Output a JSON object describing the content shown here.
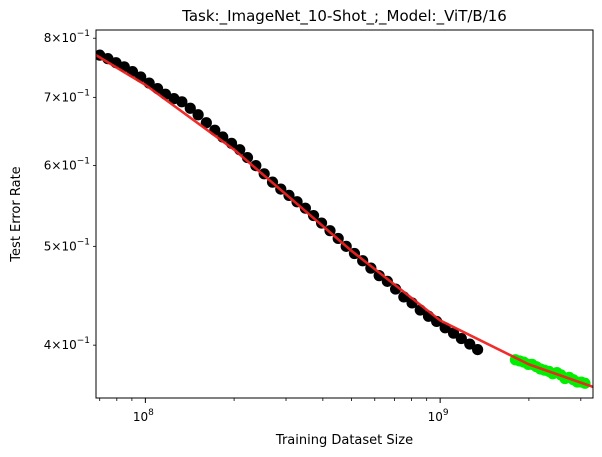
{
  "chart_data": {
    "type": "scatter",
    "title": "Task:_ImageNet_10-Shot_;_Model:_ViT/B/16",
    "xlabel": "Training Dataset Size",
    "ylabel": "Test Error Rate",
    "xscale": "log",
    "yscale": "log",
    "xlim": [
      68000000,
      3300000000
    ],
    "ylim": [
      0.355,
      0.815
    ],
    "grid": false,
    "x_ticks": [
      {
        "value": 100000000,
        "base": "10",
        "exp": "8"
      },
      {
        "value": 1000000000,
        "base": "10",
        "exp": "9"
      }
    ],
    "y_ticks": [
      {
        "value": 0.4,
        "mant": "4",
        "base": "10",
        "exp": "−1"
      },
      {
        "value": 0.5,
        "mant": "5",
        "base": "10",
        "exp": "−1"
      },
      {
        "value": 0.6,
        "mant": "6",
        "base": "10",
        "exp": "−1"
      },
      {
        "value": 0.7,
        "mant": "7",
        "base": "10",
        "exp": "−1"
      },
      {
        "value": 0.8,
        "mant": "8",
        "base": "10",
        "exp": "−1"
      }
    ],
    "x_minor_ticks": [
      70000000,
      80000000,
      90000000,
      200000000,
      300000000,
      400000000,
      500000000,
      600000000,
      700000000,
      800000000,
      900000000,
      2000000000,
      3000000000
    ],
    "series": [
      {
        "color": "#000000",
        "marker": "circle",
        "points": [
          [
            70000000,
            0.77
          ],
          [
            74600000,
            0.764
          ],
          [
            79500000,
            0.757
          ],
          [
            84800000,
            0.75
          ],
          [
            90400000,
            0.742
          ],
          [
            96400000,
            0.733
          ],
          [
            103000000,
            0.723
          ],
          [
            110000000,
            0.714
          ],
          [
            117000000,
            0.705
          ],
          [
            125000000,
            0.698
          ],
          [
            133000000,
            0.693
          ],
          [
            142000000,
            0.683
          ],
          [
            151000000,
            0.673
          ],
          [
            161000000,
            0.661
          ],
          [
            172000000,
            0.65
          ],
          [
            183000000,
            0.64
          ],
          [
            196000000,
            0.631
          ],
          [
            209000000,
            0.622
          ],
          [
            222000000,
            0.611
          ],
          [
            237000000,
            0.6
          ],
          [
            253000000,
            0.589
          ],
          [
            270000000,
            0.578
          ],
          [
            288000000,
            0.569
          ],
          [
            307000000,
            0.561
          ],
          [
            327000000,
            0.553
          ],
          [
            349000000,
            0.545
          ],
          [
            372000000,
            0.536
          ],
          [
            396000000,
            0.527
          ],
          [
            423000000,
            0.518
          ],
          [
            451000000,
            0.509
          ],
          [
            480000000,
            0.5
          ],
          [
            512000000,
            0.492
          ],
          [
            546000000,
            0.484
          ],
          [
            582000000,
            0.476
          ],
          [
            621000000,
            0.468
          ],
          [
            662000000,
            0.462
          ],
          [
            706000000,
            0.454
          ],
          [
            753000000,
            0.446
          ],
          [
            803000000,
            0.44
          ],
          [
            856000000,
            0.433
          ],
          [
            913000000,
            0.427
          ],
          [
            973000000,
            0.422
          ],
          [
            1040000000,
            0.416
          ],
          [
            1110000000,
            0.411
          ],
          [
            1180000000,
            0.406
          ],
          [
            1260000000,
            0.401
          ],
          [
            1340000000,
            0.396
          ]
        ]
      },
      {
        "color": "#00ee00",
        "marker": "circle",
        "points": [
          [
            1800000000,
            0.387
          ],
          [
            1860000000,
            0.386
          ],
          [
            1920000000,
            0.385
          ],
          [
            1990000000,
            0.383
          ],
          [
            2050000000,
            0.383
          ],
          [
            2120000000,
            0.381
          ],
          [
            2190000000,
            0.379
          ],
          [
            2260000000,
            0.378
          ],
          [
            2340000000,
            0.377
          ],
          [
            2410000000,
            0.375
          ],
          [
            2490000000,
            0.376
          ],
          [
            2570000000,
            0.374
          ],
          [
            2650000000,
            0.371
          ],
          [
            2740000000,
            0.372
          ],
          [
            2830000000,
            0.37
          ],
          [
            2920000000,
            0.368
          ],
          [
            3010000000,
            0.368
          ],
          [
            3100000000,
            0.367
          ]
        ]
      }
    ],
    "fit_line": {
      "color": "#ee2222",
      "points": [
        [
          68000000,
          0.77
        ],
        [
          100000000,
          0.72
        ],
        [
          200000000,
          0.622
        ],
        [
          500000000,
          0.495
        ],
        [
          1000000000,
          0.423
        ],
        [
          2000000000,
          0.383
        ],
        [
          3300000000,
          0.364
        ]
      ]
    }
  }
}
